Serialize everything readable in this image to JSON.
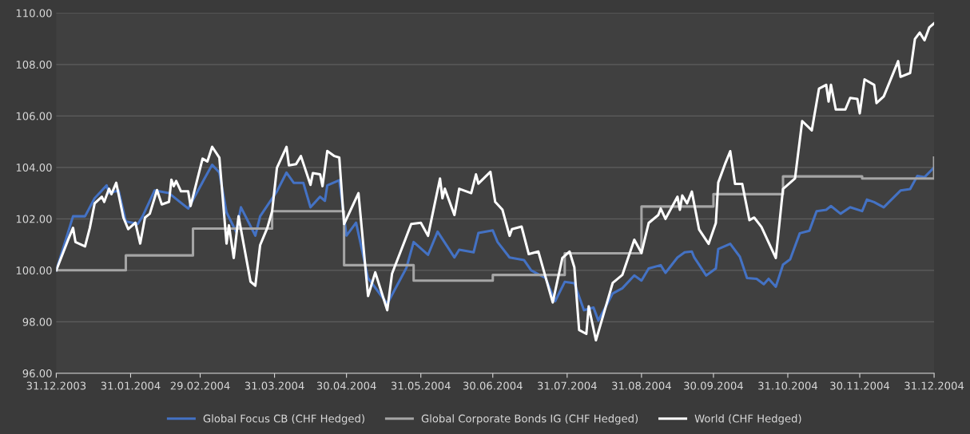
{
  "chart_data": {
    "type": "line",
    "xlim": [
      "2003-12-31",
      "2004-12-31"
    ],
    "xticks": [
      {
        "value": "2003-12-31",
        "label": "31.12.2003"
      },
      {
        "value": "2004-01-31",
        "label": "31.01.2004"
      },
      {
        "value": "2004-02-29",
        "label": "29.02.2004"
      },
      {
        "value": "2004-03-31",
        "label": "31.03.2004"
      },
      {
        "value": "2004-04-30",
        "label": "30.04.2004"
      },
      {
        "value": "2004-05-31",
        "label": "31.05.2004"
      },
      {
        "value": "2004-06-30",
        "label": "30.06.2004"
      },
      {
        "value": "2004-07-31",
        "label": "31.07.2004"
      },
      {
        "value": "2004-08-31",
        "label": "31.08.2004"
      },
      {
        "value": "2004-09-30",
        "label": "30.09.2004"
      },
      {
        "value": "2004-10-31",
        "label": "31.10.2004"
      },
      {
        "value": "2004-11-30",
        "label": "30.11.2004"
      },
      {
        "value": "2004-12-31",
        "label": "31.12.2004"
      }
    ],
    "ylim": [
      96,
      110
    ],
    "yticks": [
      {
        "value": 96,
        "label": "96.00"
      },
      {
        "value": 98,
        "label": "98.00"
      },
      {
        "value": 100,
        "label": "100.00"
      },
      {
        "value": 102,
        "label": "102.00"
      },
      {
        "value": 104,
        "label": "104.00"
      },
      {
        "value": 106,
        "label": "106.00"
      },
      {
        "value": 108,
        "label": "108.00"
      },
      {
        "value": 110,
        "label": "110.00"
      }
    ],
    "grid": "y",
    "legend": "bottom",
    "marker": "none",
    "line_style": "solid",
    "series": [
      {
        "name": "Global Focus CB (CHF Hedged)",
        "color": "#4472c4",
        "x": [
          "2003-12-31",
          "2004-01-07",
          "2004-01-12",
          "2004-01-16",
          "2004-01-21",
          "2004-01-22",
          "2004-01-26",
          "2004-01-29",
          "2004-02-03",
          "2004-02-05",
          "2004-02-10",
          "2004-02-16",
          "2004-02-24",
          "2004-03-02",
          "2004-03-05",
          "2004-03-08",
          "2004-03-11",
          "2004-03-15",
          "2004-03-17",
          "2004-03-23",
          "2004-03-25",
          "2004-04-01",
          "2004-04-05",
          "2004-04-08",
          "2004-04-12",
          "2004-04-15",
          "2004-04-19",
          "2004-04-21",
          "2004-04-22",
          "2004-04-27",
          "2004-04-30",
          "2004-05-04",
          "2004-05-09",
          "2004-05-17",
          "2004-05-25",
          "2004-05-28",
          "2004-06-03",
          "2004-06-07",
          "2004-06-14",
          "2004-06-16",
          "2004-06-22",
          "2004-06-24",
          "2004-06-30",
          "2004-07-02",
          "2004-07-07",
          "2004-07-13",
          "2004-07-16",
          "2004-07-22",
          "2004-07-26",
          "2004-07-30",
          "2004-08-03",
          "2004-08-07",
          "2004-08-11",
          "2004-08-13",
          "2004-08-19",
          "2004-08-23",
          "2004-08-28",
          "2004-08-31",
          "2004-09-03",
          "2004-09-08",
          "2004-09-10",
          "2004-09-15",
          "2004-09-18",
          "2004-09-21",
          "2004-09-22",
          "2004-09-27",
          "2004-10-01",
          "2004-10-02",
          "2004-10-07",
          "2004-10-11",
          "2004-10-14",
          "2004-10-18",
          "2004-10-21",
          "2004-10-23",
          "2004-10-26",
          "2004-10-29",
          "2004-11-01",
          "2004-11-05",
          "2004-11-09",
          "2004-11-12",
          "2004-11-16",
          "2004-11-18",
          "2004-11-22",
          "2004-11-26",
          "2004-12-01",
          "2004-12-03",
          "2004-12-06",
          "2004-12-10",
          "2004-12-17",
          "2004-12-21",
          "2004-12-24",
          "2004-12-27",
          "2004-12-31"
        ],
        "values": [
          100.0,
          102.1,
          102.1,
          102.8,
          103.3,
          103.0,
          103.1,
          101.9,
          101.8,
          102.1,
          103.1,
          103.0,
          102.4,
          103.6,
          104.1,
          103.8,
          102.25,
          101.5,
          102.45,
          101.35,
          102.1,
          103.07,
          103.8,
          103.4,
          103.4,
          102.45,
          102.86,
          102.7,
          103.3,
          103.5,
          101.35,
          101.85,
          99.7,
          98.7,
          100.1,
          101.1,
          100.6,
          101.5,
          100.5,
          100.8,
          100.7,
          101.45,
          101.55,
          101.1,
          100.5,
          100.4,
          100.0,
          99.7,
          98.8,
          99.55,
          99.5,
          98.45,
          98.55,
          98.05,
          99.1,
          99.3,
          99.8,
          99.6,
          100.07,
          100.2,
          99.9,
          100.5,
          100.7,
          100.73,
          100.5,
          99.8,
          100.07,
          100.83,
          101.03,
          100.53,
          99.7,
          99.67,
          99.46,
          99.67,
          99.36,
          100.22,
          100.43,
          101.44,
          101.54,
          102.3,
          102.35,
          102.5,
          102.2,
          102.45,
          102.3,
          102.75,
          102.65,
          102.45,
          103.1,
          103.16,
          103.67,
          103.62,
          104.0
        ]
      },
      {
        "name": "Global Corporate Bonds IG (CHF Hedged)",
        "color": "#a5a5a5",
        "type": "step",
        "x": [
          "2003-12-31",
          "2004-01-29",
          "2004-02-26",
          "2004-03-30",
          "2004-04-29",
          "2004-05-28",
          "2004-06-30",
          "2004-07-30",
          "2004-08-31",
          "2004-09-30",
          "2004-10-29",
          "2004-12-01",
          "2004-12-31"
        ],
        "values": [
          100.0,
          100.58,
          101.62,
          102.3,
          100.2,
          99.6,
          99.82,
          100.66,
          102.48,
          102.96,
          103.65,
          103.57,
          104.38
        ]
      },
      {
        "name": "World (CHF Hedged)",
        "color": "#ffffff",
        "x": [
          "2003-12-31",
          "2004-01-05",
          "2004-01-07",
          "2004-01-08",
          "2004-01-12",
          "2004-01-14",
          "2004-01-16",
          "2004-01-19",
          "2004-01-20",
          "2004-01-22",
          "2004-01-23",
          "2004-01-25",
          "2004-01-28",
          "2004-01-30",
          "2004-02-02",
          "2004-02-04",
          "2004-02-06",
          "2004-02-08",
          "2004-02-11",
          "2004-02-13",
          "2004-02-16",
          "2004-02-17",
          "2004-02-18",
          "2004-02-19",
          "2004-02-21",
          "2004-02-24",
          "2004-02-25",
          "2004-03-01",
          "2004-03-03",
          "2004-03-05",
          "2004-03-08",
          "2004-03-11",
          "2004-03-12",
          "2004-03-14",
          "2004-03-16",
          "2004-03-21",
          "2004-03-23",
          "2004-03-25",
          "2004-03-28",
          "2004-03-30",
          "2004-04-01",
          "2004-04-05",
          "2004-04-06",
          "2004-04-09",
          "2004-04-11",
          "2004-04-15",
          "2004-04-16",
          "2004-04-19",
          "2004-04-20",
          "2004-04-22",
          "2004-04-25",
          "2004-04-27",
          "2004-04-29",
          "2004-05-05",
          "2004-05-09",
          "2004-05-12",
          "2004-05-17",
          "2004-05-19",
          "2004-05-27",
          "2004-05-31",
          "2004-06-03",
          "2004-06-08",
          "2004-06-09",
          "2004-06-10",
          "2004-06-14",
          "2004-06-16",
          "2004-06-21",
          "2004-06-23",
          "2004-06-24",
          "2004-06-29",
          "2004-07-01",
          "2004-07-04",
          "2004-07-07",
          "2004-07-08",
          "2004-07-12",
          "2004-07-15",
          "2004-07-19",
          "2004-07-25",
          "2004-07-29",
          "2004-08-01",
          "2004-08-03",
          "2004-08-05",
          "2004-08-08",
          "2004-08-09",
          "2004-08-12",
          "2004-08-19",
          "2004-08-23",
          "2004-08-28",
          "2004-08-31",
          "2004-09-03",
          "2004-09-07",
          "2004-09-08",
          "2004-09-10",
          "2004-09-15",
          "2004-09-16",
          "2004-09-17",
          "2004-09-19",
          "2004-09-21",
          "2004-09-24",
          "2004-09-28",
          "2004-10-01",
          "2004-10-02",
          "2004-10-05",
          "2004-10-07",
          "2004-10-09",
          "2004-10-12",
          "2004-10-15",
          "2004-10-17",
          "2004-10-20",
          "2004-10-26",
          "2004-10-29",
          "2004-11-03",
          "2004-11-06",
          "2004-11-10",
          "2004-11-13",
          "2004-11-16",
          "2004-11-17",
          "2004-11-18",
          "2004-11-20",
          "2004-11-24",
          "2004-11-26",
          "2004-11-29",
          "2004-11-30",
          "2004-12-02",
          "2004-12-06",
          "2004-12-07",
          "2004-12-10",
          "2004-12-16",
          "2004-12-17",
          "2004-12-21",
          "2004-12-23",
          "2004-12-25",
          "2004-12-27",
          "2004-12-29",
          "2004-12-31"
        ],
        "values": [
          100.0,
          101.2,
          101.65,
          101.1,
          100.93,
          101.65,
          102.6,
          102.86,
          102.66,
          103.17,
          102.96,
          103.4,
          102.05,
          101.6,
          101.85,
          101.04,
          102.05,
          102.2,
          103.12,
          102.56,
          102.66,
          103.52,
          103.27,
          103.47,
          103.07,
          103.07,
          102.5,
          104.34,
          104.23,
          104.8,
          104.38,
          101.04,
          101.75,
          100.48,
          102.1,
          99.56,
          99.4,
          100.98,
          101.65,
          102.3,
          103.98,
          104.8,
          104.08,
          104.13,
          104.44,
          103.32,
          103.78,
          103.73,
          103.27,
          104.64,
          104.44,
          104.38,
          101.8,
          103.0,
          99.0,
          99.92,
          98.45,
          99.87,
          101.8,
          101.85,
          101.34,
          103.57,
          102.8,
          103.17,
          102.15,
          103.17,
          103.0,
          103.73,
          103.37,
          103.83,
          102.66,
          102.36,
          101.34,
          101.6,
          101.7,
          100.63,
          100.73,
          98.75,
          100.48,
          100.73,
          100.12,
          97.68,
          97.53,
          98.6,
          97.28,
          99.51,
          99.82,
          101.19,
          100.68,
          101.84,
          102.15,
          102.4,
          102.0,
          102.86,
          102.35,
          102.91,
          102.6,
          103.06,
          101.59,
          101.03,
          101.84,
          103.41,
          104.17,
          104.63,
          103.36,
          103.36,
          101.95,
          102.05,
          101.69,
          100.48,
          103.16,
          103.57,
          105.8,
          105.44,
          107.06,
          107.21,
          106.56,
          107.21,
          106.25,
          106.25,
          106.7,
          106.66,
          106.1,
          107.42,
          107.21,
          106.5,
          106.76,
          108.13,
          107.52,
          107.67,
          108.99,
          109.24,
          108.94,
          109.44,
          109.6
        ]
      }
    ]
  }
}
